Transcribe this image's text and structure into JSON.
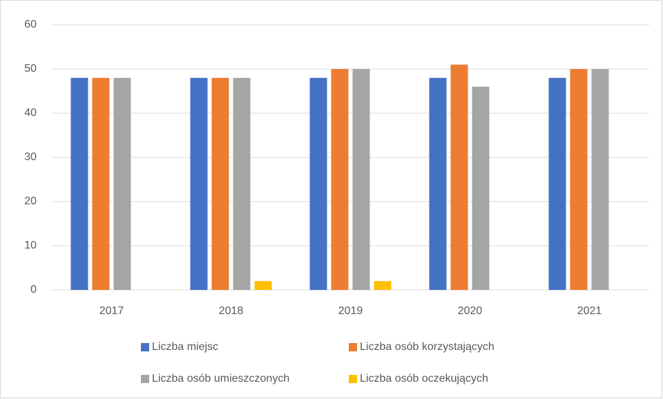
{
  "chart_data": {
    "type": "bar",
    "categories": [
      "2017",
      "2018",
      "2019",
      "2020",
      "2021"
    ],
    "series": [
      {
        "name": "Liczba miejsc",
        "color": "#4472c4",
        "values": [
          48,
          48,
          48,
          48,
          48
        ]
      },
      {
        "name": "Liczba osób korzystających",
        "color": "#ed7d31",
        "values": [
          48,
          48,
          50,
          51,
          50
        ]
      },
      {
        "name": "Liczba osób umieszczonych",
        "color": "#a5a5a5",
        "values": [
          48,
          48,
          50,
          46,
          50
        ]
      },
      {
        "name": "Liczba osób oczekujących",
        "color": "#ffc000",
        "values": [
          0,
          2,
          2,
          0,
          0
        ]
      }
    ],
    "ylim": [
      0,
      60
    ],
    "yticks": [
      0,
      10,
      20,
      30,
      40,
      50,
      60
    ],
    "grid": true,
    "legend": "bottom"
  }
}
